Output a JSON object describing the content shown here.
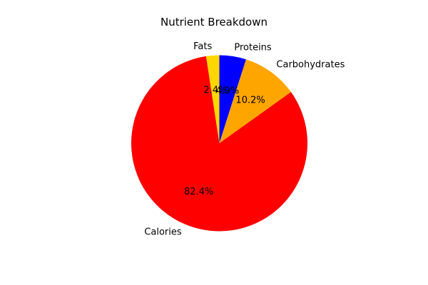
{
  "chart_data": {
    "type": "pie",
    "title": "Nutrient Breakdown",
    "start_angle_deg": 90,
    "direction": "clockwise",
    "slices": [
      {
        "label": "Proteins",
        "value": 4.9,
        "pct_label": "4.9%",
        "color": "#0000ff"
      },
      {
        "label": "Carbohydrates",
        "value": 10.2,
        "pct_label": "10.2%",
        "color": "#ffa500"
      },
      {
        "label": "Calories",
        "value": 82.4,
        "pct_label": "82.4%",
        "color": "#ff0000"
      },
      {
        "label": "Fats",
        "value": 2.4,
        "pct_label": "2.4%",
        "color": "#ffd700"
      }
    ]
  }
}
